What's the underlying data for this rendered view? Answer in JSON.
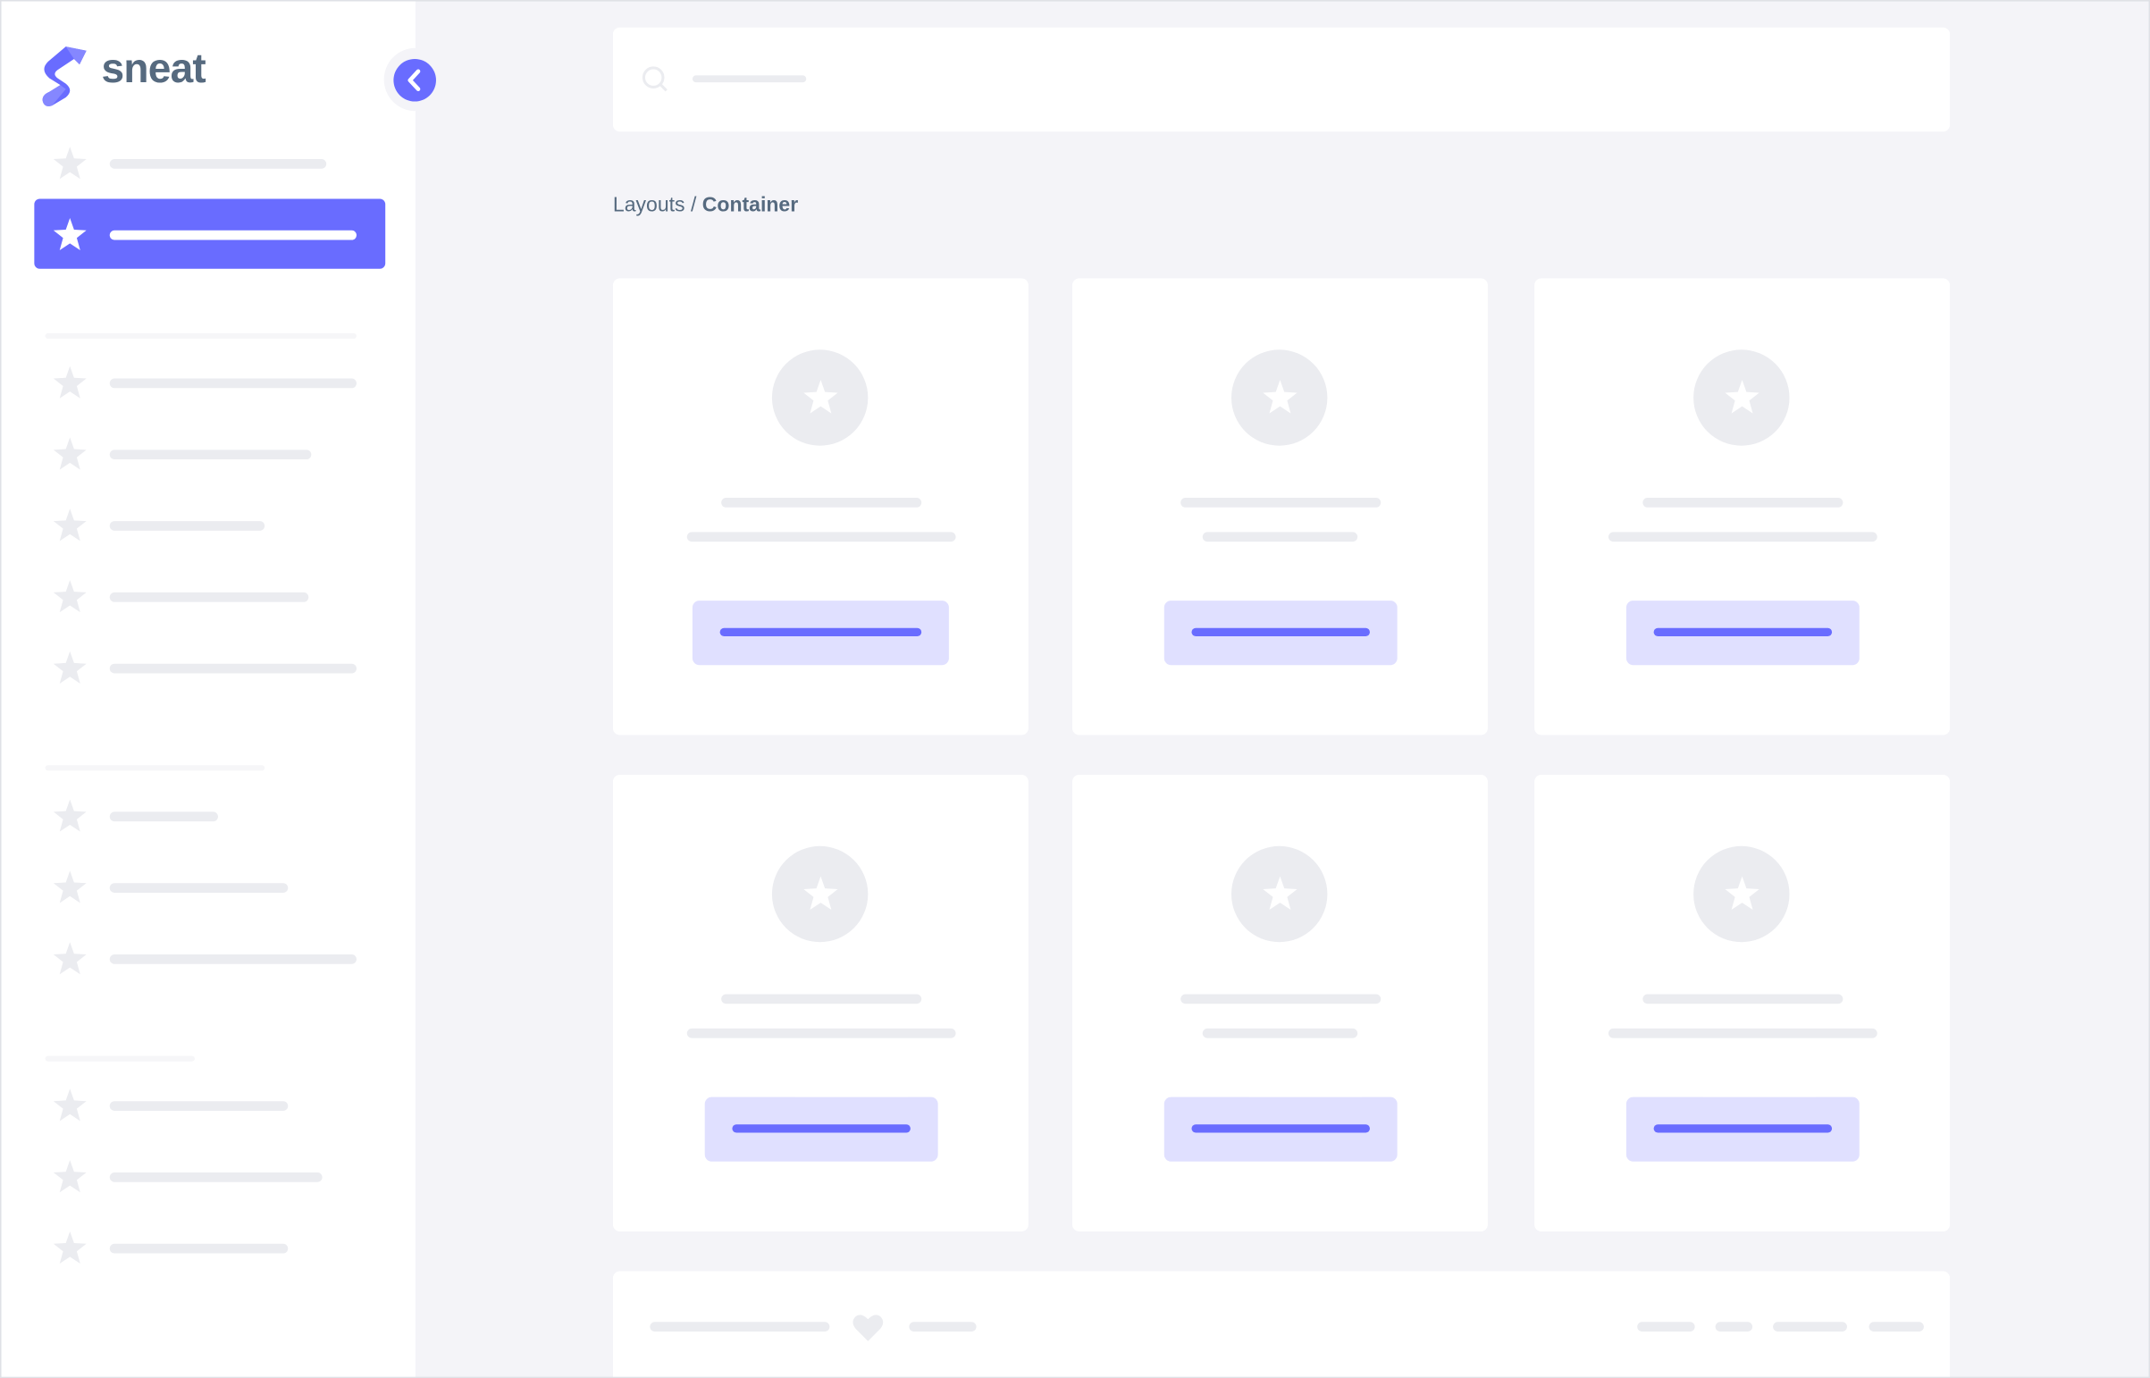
{
  "brand": {
    "logo_text": "sneat",
    "accent_color": "#696cff",
    "text_color": "#566a7f"
  },
  "sidebar": {
    "toggle_icon": "chevron-left-icon",
    "item_icon": "star-icon",
    "active_index": 1
  },
  "topbar": {
    "search_icon": "search-icon",
    "avatar_icon": "user-icon"
  },
  "breadcrumb": {
    "parent": "Layouts",
    "separator": " / ",
    "current": "Container"
  },
  "footer": {
    "icon": "heart-icon"
  }
}
